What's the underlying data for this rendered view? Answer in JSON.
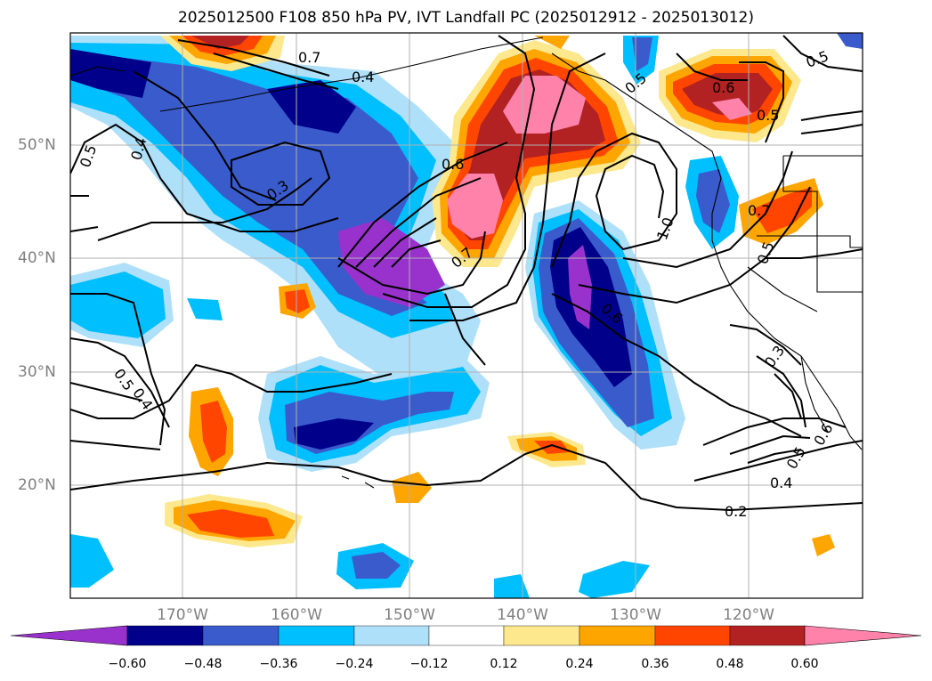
{
  "title": "2025012500 F108 850 hPa PV, IVT Landfall PC (2025012912 - 2025013012)",
  "map": {
    "lon_labels": [
      "170°W",
      "160°W",
      "150°W",
      "140°W",
      "130°W",
      "120°W"
    ],
    "lat_labels": [
      "50°N",
      "40°N",
      "30°N",
      "20°N"
    ],
    "contour_labels": [
      "0.5",
      "0.4",
      "0.3",
      "0.4",
      "0.5",
      "0.6",
      "0.7",
      "0.7",
      "1.0",
      "0.6",
      "0.5",
      "0.6",
      "0.5",
      "0.5",
      "0.3",
      "0.5",
      "0.6",
      "0.4",
      "0.2",
      "0.5",
      "0.4",
      "0.7"
    ]
  },
  "colorbar": {
    "tick_labels": [
      "−0.60",
      "−0.48",
      "−0.36",
      "−0.24",
      "−0.12",
      "0.12",
      "0.24",
      "0.36",
      "0.48",
      "0.60"
    ],
    "colors": [
      "#9932cc",
      "#00008b",
      "#3a5bcc",
      "#00bfff",
      "#afe0fa",
      "#ffffff",
      "#fde88d",
      "#ffa500",
      "#ff4500",
      "#b22222",
      "#ff82ab"
    ]
  }
}
